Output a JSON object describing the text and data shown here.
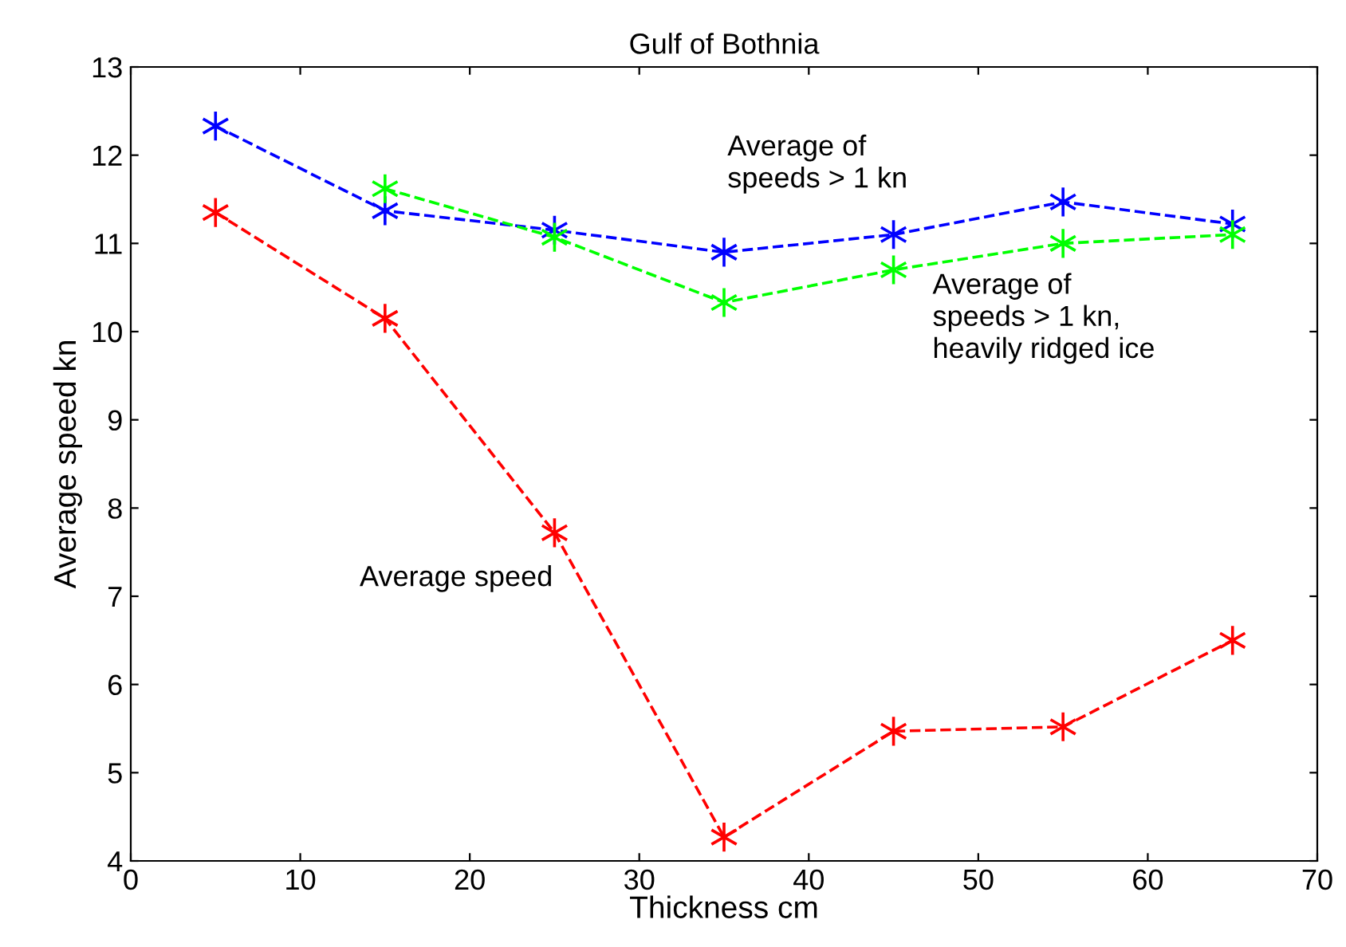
{
  "chart_data": {
    "type": "line",
    "title": "Gulf of Bothnia",
    "xlabel": "Thickness cm",
    "ylabel": "Average speed kn",
    "series": [
      {
        "name": "Average of\nspeeds > 1 kn",
        "color": "#0000ff",
        "x": [
          5,
          15,
          25,
          35,
          45,
          55,
          65
        ],
        "values": [
          12.33,
          11.37,
          11.15,
          10.9,
          11.1,
          11.47,
          11.22
        ]
      },
      {
        "name": "Average of\nspeeds > 1 kn,\nheavily ridged ice",
        "color": "#00ff00",
        "x": [
          15,
          25,
          35,
          45,
          55,
          65
        ],
        "values": [
          11.62,
          11.07,
          10.33,
          10.7,
          11.0,
          11.1
        ]
      },
      {
        "name": "Average speed",
        "color": "#ff0000",
        "x": [
          5,
          15,
          25,
          35,
          45,
          55,
          65
        ],
        "values": [
          11.35,
          10.15,
          7.72,
          4.27,
          5.47,
          5.52,
          6.5
        ]
      }
    ],
    "xlim": [
      0,
      70
    ],
    "xticks": [
      0,
      10,
      20,
      30,
      40,
      50,
      60,
      70
    ],
    "ylim": [
      4,
      13
    ],
    "yticks": [
      4,
      5,
      6,
      7,
      8,
      9,
      10,
      11,
      12,
      13
    ],
    "marker": "cross",
    "line_style": "dashed",
    "grid": false,
    "legend": false
  }
}
